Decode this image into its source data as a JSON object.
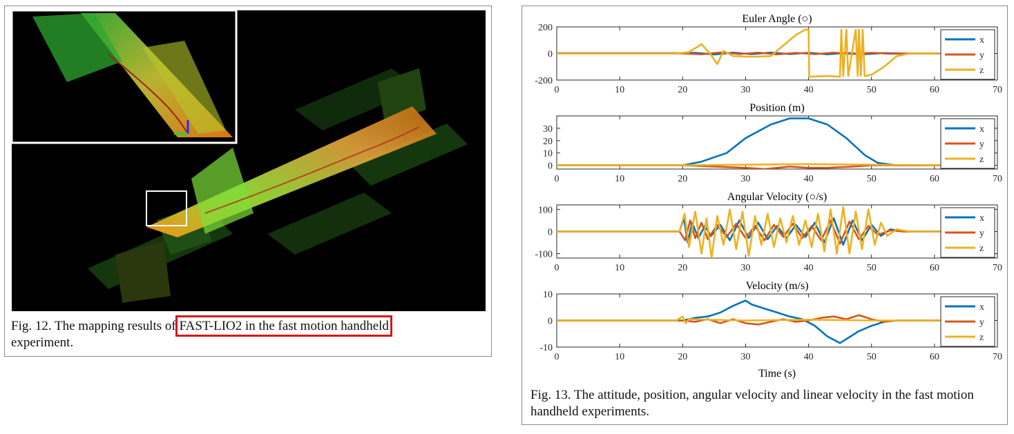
{
  "fig12": {
    "caption_prefix": "Fig. 12.  The mapping results of ",
    "caption_highlight": "FAST-LIO2 in the fast motion handheld",
    "caption_suffix": "experiment."
  },
  "fig13": {
    "caption": "Fig. 13.  The attitude, position, angular velocity and linear velocity in the fast motion handheld experiments.",
    "xlabel": "Time (s)"
  },
  "colors": {
    "x": "#0072BD",
    "y": "#D95319",
    "z": "#EDB120",
    "highlight": "#d9141b"
  },
  "chart_data": [
    {
      "type": "line",
      "title": "Euler Angle (○)",
      "xlim": [
        0,
        70
      ],
      "ylim": [
        -200,
        200
      ],
      "xticks": [
        0,
        10,
        20,
        30,
        40,
        50,
        60,
        70
      ],
      "yticks": [
        200,
        0,
        -200
      ],
      "legend": "right",
      "series": [
        {
          "name": "x",
          "points": [
            [
              0,
              2
            ],
            [
              20,
              2
            ],
            [
              22,
              5
            ],
            [
              25,
              -8
            ],
            [
              28,
              6
            ],
            [
              31,
              -5
            ],
            [
              34,
              7
            ],
            [
              37,
              -4
            ],
            [
              40,
              5
            ],
            [
              43,
              -6
            ],
            [
              46,
              4
            ],
            [
              49,
              -5
            ],
            [
              52,
              3
            ],
            [
              55,
              0
            ],
            [
              62,
              0
            ]
          ]
        },
        {
          "name": "y",
          "points": [
            [
              0,
              0
            ],
            [
              20,
              0
            ],
            [
              23,
              -6
            ],
            [
              26,
              8
            ],
            [
              29,
              -4
            ],
            [
              32,
              6
            ],
            [
              35,
              -7
            ],
            [
              38,
              4
            ],
            [
              41,
              -5
            ],
            [
              44,
              6
            ],
            [
              47,
              -4
            ],
            [
              50,
              5
            ],
            [
              53,
              -2
            ],
            [
              56,
              0
            ],
            [
              62,
              0
            ]
          ]
        },
        {
          "name": "z",
          "points": [
            [
              0,
              0
            ],
            [
              19,
              0
            ],
            [
              21,
              10
            ],
            [
              23,
              70
            ],
            [
              24.5,
              -10
            ],
            [
              25.5,
              -80
            ],
            [
              26.5,
              20
            ],
            [
              28,
              -20
            ],
            [
              31,
              -25
            ],
            [
              34,
              -20
            ],
            [
              36,
              60
            ],
            [
              38,
              140
            ],
            [
              39.5,
              180
            ],
            [
              40,
              180
            ],
            [
              40.1,
              -175
            ],
            [
              43,
              -170
            ],
            [
              45,
              -175
            ],
            [
              45.2,
              180
            ],
            [
              45.5,
              -170
            ],
            [
              46,
              180
            ],
            [
              46.3,
              -170
            ],
            [
              47.5,
              180
            ],
            [
              47.8,
              -170
            ],
            [
              48,
              180
            ],
            [
              48.3,
              -170
            ],
            [
              48.6,
              180
            ],
            [
              48.9,
              -170
            ],
            [
              50,
              -160
            ],
            [
              52,
              -100
            ],
            [
              54,
              -20
            ],
            [
              56,
              0
            ],
            [
              62,
              0
            ]
          ]
        }
      ]
    },
    {
      "type": "line",
      "title": "Position (m)",
      "xlim": [
        0,
        70
      ],
      "ylim": [
        -3,
        40
      ],
      "xticks": [
        0,
        10,
        20,
        30,
        40,
        50,
        60,
        70
      ],
      "yticks": [
        30,
        20,
        10,
        0
      ],
      "legend": "right",
      "series": [
        {
          "name": "x",
          "points": [
            [
              0,
              0
            ],
            [
              20,
              0
            ],
            [
              23,
              3
            ],
            [
              27,
              10
            ],
            [
              30,
              22
            ],
            [
              34,
              33
            ],
            [
              37,
              38
            ],
            [
              40,
              38
            ],
            [
              43,
              33
            ],
            [
              46,
              22
            ],
            [
              49,
              8
            ],
            [
              51,
              2
            ],
            [
              54,
              0
            ],
            [
              62,
              0
            ]
          ]
        },
        {
          "name": "y",
          "points": [
            [
              0,
              0
            ],
            [
              20,
              0
            ],
            [
              25,
              -1
            ],
            [
              30,
              -2
            ],
            [
              33,
              -3
            ],
            [
              37,
              -1
            ],
            [
              40,
              -2
            ],
            [
              43,
              -2
            ],
            [
              47,
              -1
            ],
            [
              50,
              0
            ],
            [
              62,
              0
            ]
          ]
        },
        {
          "name": "z",
          "points": [
            [
              0,
              0
            ],
            [
              20,
              0
            ],
            [
              30,
              0.5
            ],
            [
              40,
              1
            ],
            [
              50,
              0.5
            ],
            [
              62,
              0
            ]
          ]
        }
      ]
    },
    {
      "type": "line",
      "title": "Angular Velocity (○/s)",
      "xlim": [
        0,
        70
      ],
      "ylim": [
        -120,
        120
      ],
      "xticks": [
        0,
        10,
        20,
        30,
        40,
        50,
        60,
        70
      ],
      "yticks": [
        100,
        0,
        -100
      ],
      "legend": "right",
      "series": [
        {
          "name": "x",
          "points": [
            [
              0,
              0
            ],
            [
              19.5,
              0
            ],
            [
              20.2,
              60
            ],
            [
              20.8,
              -50
            ],
            [
              21.5,
              40
            ],
            [
              22.5,
              -30
            ],
            [
              23.5,
              25
            ],
            [
              24.5,
              -20
            ],
            [
              26,
              30
            ],
            [
              27.5,
              -40
            ],
            [
              29,
              50
            ],
            [
              30.5,
              -30
            ],
            [
              32,
              40
            ],
            [
              33.5,
              -35
            ],
            [
              35,
              25
            ],
            [
              36.5,
              -30
            ],
            [
              38,
              30
            ],
            [
              39.5,
              -25
            ],
            [
              41,
              40
            ],
            [
              42.5,
              -50
            ],
            [
              44,
              60
            ],
            [
              45.5,
              -60
            ],
            [
              47,
              50
            ],
            [
              48.5,
              -40
            ],
            [
              50,
              30
            ],
            [
              51.5,
              -20
            ],
            [
              53,
              10
            ],
            [
              55,
              0
            ],
            [
              62,
              0
            ]
          ]
        },
        {
          "name": "y",
          "points": [
            [
              0,
              0
            ],
            [
              19.5,
              0
            ],
            [
              20.4,
              -40
            ],
            [
              21.2,
              50
            ],
            [
              22,
              -30
            ],
            [
              23,
              40
            ],
            [
              24,
              -35
            ],
            [
              25.5,
              30
            ],
            [
              27,
              -25
            ],
            [
              28.5,
              35
            ],
            [
              30,
              -30
            ],
            [
              31.5,
              25
            ],
            [
              33,
              -40
            ],
            [
              34.5,
              30
            ],
            [
              36,
              -25
            ],
            [
              37.5,
              35
            ],
            [
              39,
              -30
            ],
            [
              40.5,
              25
            ],
            [
              42,
              -40
            ],
            [
              43.5,
              50
            ],
            [
              45,
              -55
            ],
            [
              46.5,
              45
            ],
            [
              48,
              -35
            ],
            [
              49.5,
              25
            ],
            [
              51,
              -15
            ],
            [
              53,
              5
            ],
            [
              55,
              0
            ],
            [
              62,
              0
            ]
          ]
        },
        {
          "name": "z",
          "points": [
            [
              0,
              0
            ],
            [
              19.5,
              0
            ],
            [
              20.3,
              80
            ],
            [
              21,
              -70
            ],
            [
              22,
              90
            ],
            [
              23,
              -100
            ],
            [
              23.8,
              60
            ],
            [
              24.6,
              -120
            ],
            [
              25.5,
              70
            ],
            [
              26.5,
              -60
            ],
            [
              27.5,
              100
            ],
            [
              28.5,
              -80
            ],
            [
              29.5,
              90
            ],
            [
              30.5,
              -110
            ],
            [
              31.5,
              70
            ],
            [
              32.5,
              -60
            ],
            [
              33.5,
              80
            ],
            [
              34.5,
              -70
            ],
            [
              35.5,
              60
            ],
            [
              36.5,
              -50
            ],
            [
              37.5,
              70
            ],
            [
              38.5,
              -60
            ],
            [
              39.5,
              50
            ],
            [
              40.5,
              -70
            ],
            [
              41.5,
              80
            ],
            [
              42.5,
              -90
            ],
            [
              43.5,
              100
            ],
            [
              44.5,
              -100
            ],
            [
              45.5,
              110
            ],
            [
              46.5,
              -100
            ],
            [
              47.5,
              90
            ],
            [
              48.5,
              -80
            ],
            [
              49.5,
              100
            ],
            [
              50.5,
              -60
            ],
            [
              51.5,
              40
            ],
            [
              52.5,
              -20
            ],
            [
              54,
              10
            ],
            [
              56,
              0
            ],
            [
              62,
              0
            ]
          ]
        }
      ]
    },
    {
      "type": "line",
      "title": "Velocity (m/s)",
      "xlim": [
        0,
        70
      ],
      "ylim": [
        -10,
        10
      ],
      "xticks": [
        0,
        10,
        20,
        30,
        40,
        50,
        60,
        70
      ],
      "yticks": [
        10,
        0,
        -10
      ],
      "legend": "right",
      "series": [
        {
          "name": "x",
          "points": [
            [
              0,
              0
            ],
            [
              20,
              0
            ],
            [
              22,
              1
            ],
            [
              24,
              1.5
            ],
            [
              26,
              3
            ],
            [
              28,
              5.5
            ],
            [
              30,
              7.5
            ],
            [
              31,
              6
            ],
            [
              33,
              4.5
            ],
            [
              35,
              3
            ],
            [
              37,
              1.5
            ],
            [
              39,
              0.5
            ],
            [
              41,
              -2
            ],
            [
              43,
              -6
            ],
            [
              45,
              -8.5
            ],
            [
              46,
              -7
            ],
            [
              48,
              -4
            ],
            [
              50,
              -2
            ],
            [
              52,
              -0.5
            ],
            [
              54,
              0
            ],
            [
              62,
              0
            ]
          ]
        },
        {
          "name": "y",
          "points": [
            [
              0,
              0
            ],
            [
              20,
              0
            ],
            [
              22,
              -0.5
            ],
            [
              24,
              0.5
            ],
            [
              26,
              -1
            ],
            [
              28,
              0.5
            ],
            [
              30,
              -1
            ],
            [
              32,
              -1.5
            ],
            [
              34,
              -0.5
            ],
            [
              36,
              0.5
            ],
            [
              38,
              -0.5
            ],
            [
              40,
              0
            ],
            [
              42,
              1
            ],
            [
              44,
              1.5
            ],
            [
              46,
              0.5
            ],
            [
              48,
              2
            ],
            [
              50,
              0.5
            ],
            [
              52,
              -0.5
            ],
            [
              54,
              0
            ],
            [
              62,
              0
            ]
          ]
        },
        {
          "name": "z",
          "points": [
            [
              0,
              0
            ],
            [
              19,
              0
            ],
            [
              20,
              1.5
            ],
            [
              20.5,
              -1
            ],
            [
              21,
              0.5
            ],
            [
              24,
              0.3
            ],
            [
              30,
              0
            ],
            [
              40,
              0.3
            ],
            [
              50,
              0
            ],
            [
              62,
              0
            ]
          ]
        }
      ]
    }
  ]
}
